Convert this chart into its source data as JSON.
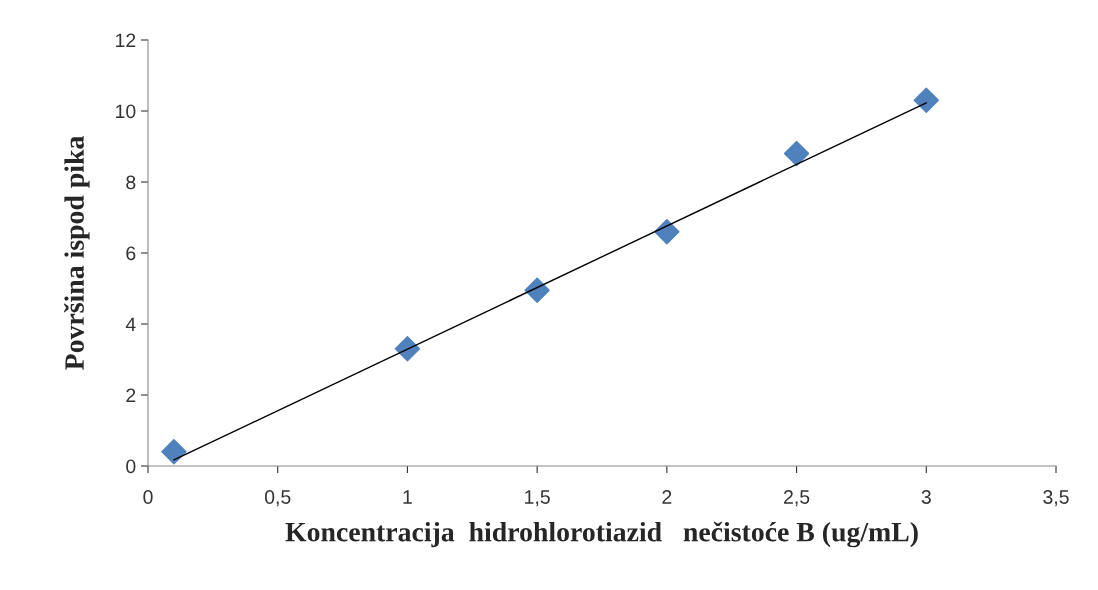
{
  "chart_data": {
    "type": "scatter",
    "xlabel": "Koncentracija  hidrohlorotiazid   nečistoće B (ug/mL)",
    "ylabel": "Površina ispod pika",
    "x": [
      0.1,
      1,
      1.5,
      2,
      2.5,
      3
    ],
    "series": [
      {
        "color": "#4f81bd",
        "marker": "diamond",
        "values": [
          0.4,
          3.3,
          4.95,
          6.6,
          8.8,
          10.3
        ]
      },
      {
        "type": "line",
        "color": "#000000",
        "marker": "none",
        "line_style": "solid",
        "x": [
          0.1,
          3
        ],
        "values": [
          0.17,
          10.23
        ]
      }
    ],
    "xlim": [
      0,
      3.5
    ],
    "ylim": [
      0,
      12
    ],
    "xticks": [
      0,
      {
        "value": 0.5,
        "label": "0,5"
      },
      1,
      {
        "value": 1.5,
        "label": "1,5"
      },
      2,
      {
        "value": 2.5,
        "label": "2,5"
      },
      3,
      {
        "value": 3.5,
        "label": "3,5"
      }
    ],
    "yticks": [
      0,
      2,
      4,
      6,
      8,
      10,
      12
    ],
    "grid": false,
    "legend": false
  }
}
